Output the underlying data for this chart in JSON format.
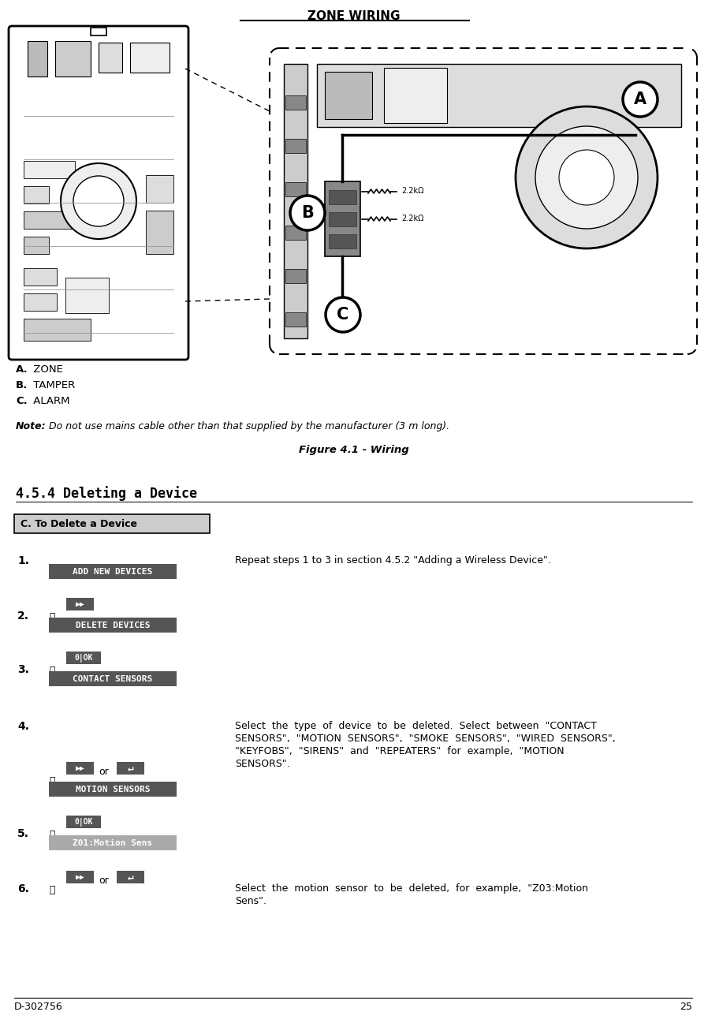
{
  "page_title": "ZONE WIRING",
  "doc_number": "D-302756",
  "page_number": "25",
  "legend_a_bold": "A.",
  "legend_a_text": " ZONE",
  "legend_b_bold": "B.",
  "legend_b_text": " TAMPER",
  "legend_c_bold": "C.",
  "legend_c_text": " ALARM",
  "note_bold": "Note:",
  "note_text": " Do not use mains cable other than that supplied by the manufacturer (3 m long).",
  "figure_caption": "Figure 4.1 - Wiring",
  "section_title": "4.5.4 Deleting a Device",
  "box_title": "C. To Delete a Device",
  "step1_num": "1.",
  "step1_text": "Repeat steps 1 to 3 in section 4.5.2 \"Adding a Wireless Device\".",
  "btn_add": "ADD NEW DEVICES",
  "step2_num": "2.",
  "btn_delete": "DELETE DEVICES",
  "step3_num": "3.",
  "btn_contact": "CONTACT SENSORS",
  "step4_num": "4.",
  "step4_text_1": "Select  the  type  of  device  to  be  deleted.  Select  between  \"CONTACT",
  "step4_text_2": "SENSORS\",  \"MOTION  SENSORS\",  \"SMOKE  SENSORS\",  \"WIRED  SENSORS\",",
  "step4_text_3": "\"KEYFOBS\",  \"SIRENS\"  and  \"REPEATERS\"  for  example,  \"MOTION",
  "step4_text_4": "SENSORS\".",
  "btn_motion": "MOTION SENSORS",
  "step5_num": "5.",
  "btn_z01": "Z01:Motion Sens",
  "step6_num": "6.",
  "step6_text_1": "Select  the  motion  sensor  to  be  deleted,  for  example,  \"Z03:Motion",
  "step6_text_2": "Sens\".",
  "bg_color": "#ffffff",
  "btn_dark_bg": "#555555",
  "btn_light_bg": "#aaaaaa",
  "btn_text_color": "#ffffff",
  "or_text": "or"
}
